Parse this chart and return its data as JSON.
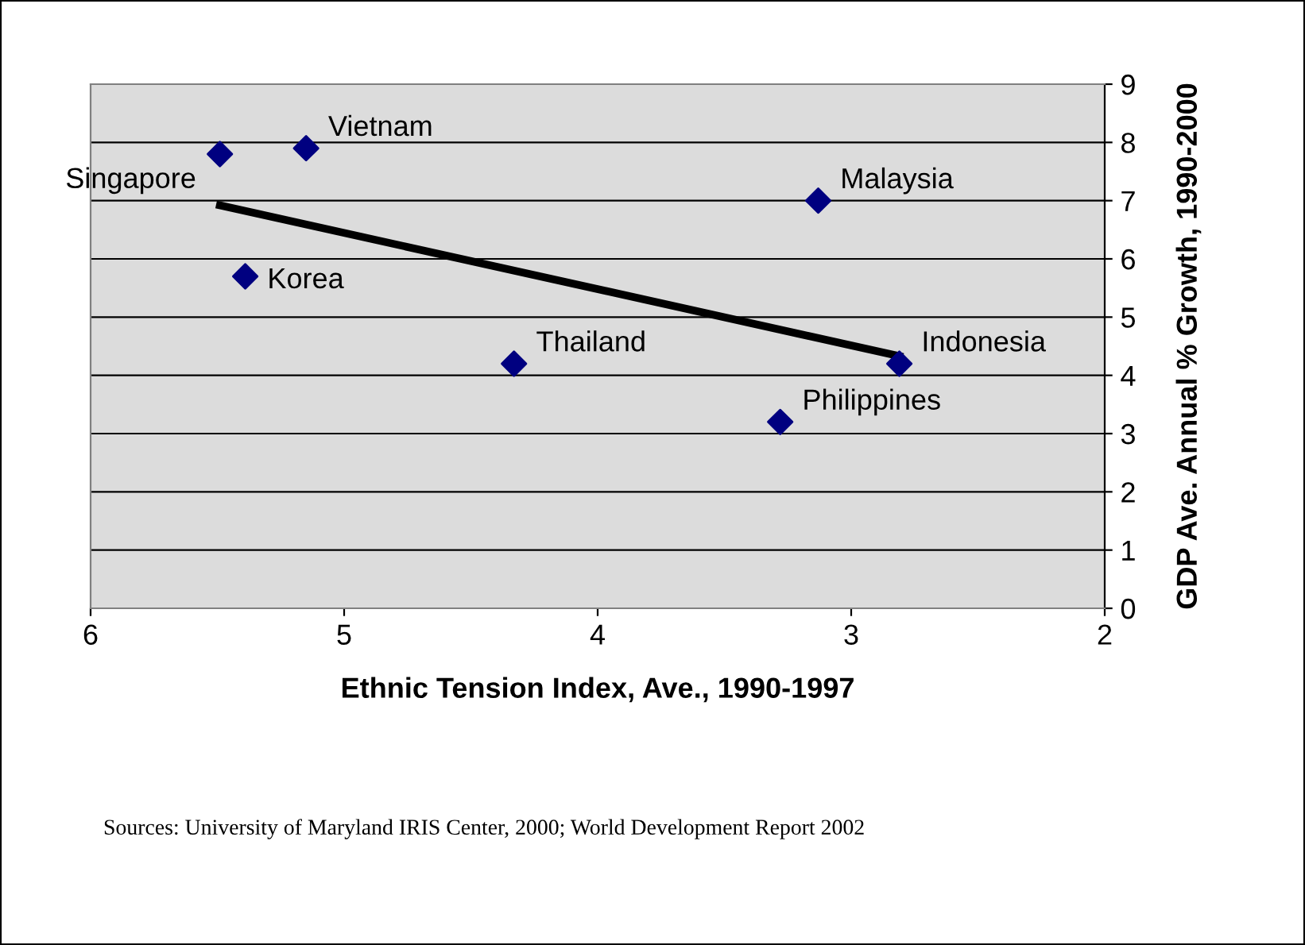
{
  "chart_data": {
    "type": "scatter",
    "xlabel": "Ethnic Tension Index, Ave., 1990-1997",
    "ylabel": "GDP Ave. Annual % Growth, 1990-2000",
    "series": [
      {
        "color": "#000080",
        "marker": "diamond",
        "x": [
          5.49,
          5.15,
          5.39,
          4.33,
          3.13,
          2.81,
          3.28
        ],
        "values": [
          7.8,
          7.9,
          5.7,
          4.2,
          7.0,
          4.2,
          3.2
        ]
      },
      {
        "type": "line",
        "color": "#000000",
        "marker": "none",
        "line_style": "solid",
        "x": [
          5.49,
          2.81
        ],
        "values": [
          6.92,
          4.33
        ]
      }
    ],
    "annotations": [
      {
        "text": "Singapore",
        "x": 5.49,
        "y": 7.8
      },
      {
        "text": "Vietnam",
        "x": 5.15,
        "y": 7.9
      },
      {
        "text": "Korea",
        "x": 5.39,
        "y": 5.7
      },
      {
        "text": "Thailand",
        "x": 4.33,
        "y": 4.2
      },
      {
        "text": "Malaysia",
        "x": 3.13,
        "y": 7.0
      },
      {
        "text": "Indonesia",
        "x": 2.81,
        "y": 4.2
      },
      {
        "text": "Philippines",
        "x": 3.28,
        "y": 3.2
      },
      "Sources: University of Maryland IRIS Center, 2000; World Development Report 2002"
    ],
    "xlim": [
      6,
      2
    ],
    "xticks": [
      6,
      5,
      4,
      3,
      2
    ],
    "ylim": [
      0,
      9
    ],
    "yticks": [
      0,
      1,
      2,
      3,
      4,
      5,
      6,
      7,
      8,
      9
    ],
    "grid": "y",
    "legend": false
  }
}
